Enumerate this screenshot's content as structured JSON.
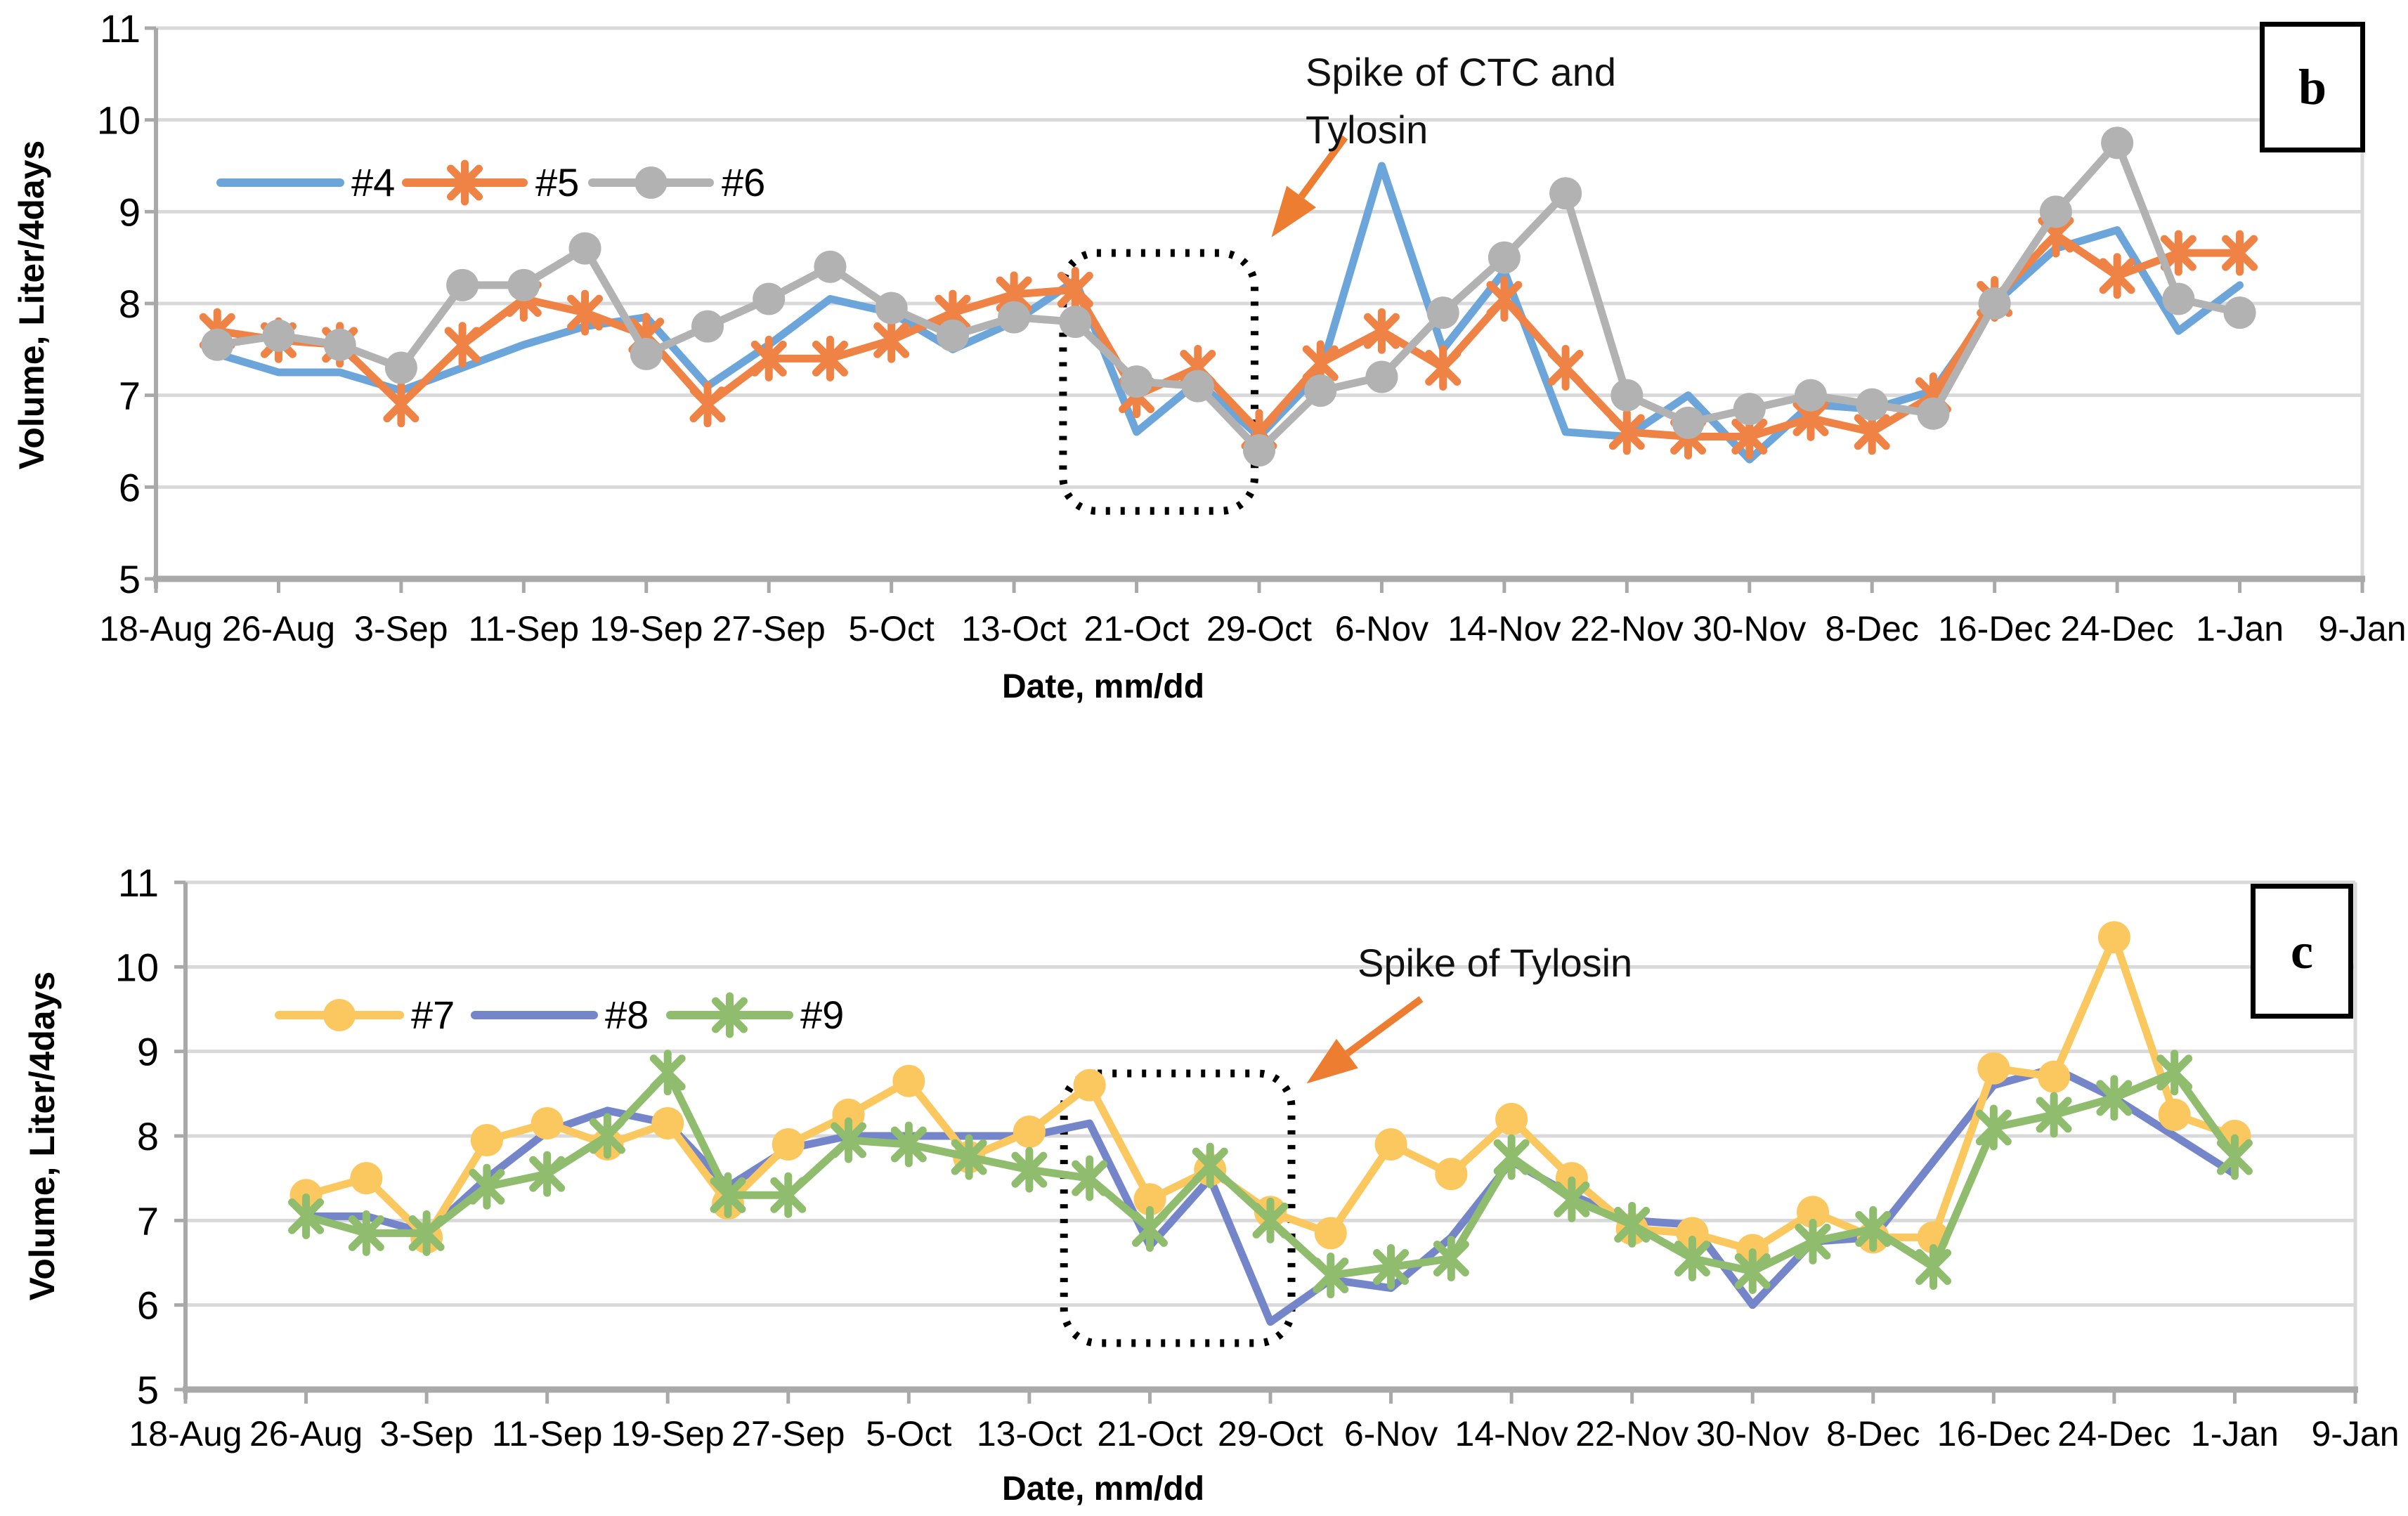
{
  "figure": {
    "background": "#FFFFFF",
    "x_axis_title": "Date, mm/dd",
    "y_axis_title": "Volume, Liter/4days",
    "x_tick_labels": [
      "18-Aug",
      "26-Aug",
      "3-Sep",
      "11-Sep",
      "19-Sep",
      "27-Sep",
      "5-Oct",
      "13-Oct",
      "21-Oct",
      "29-Oct",
      "6-Nov",
      "14-Nov",
      "22-Nov",
      "30-Nov",
      "8-Dec",
      "16-Dec",
      "24-Dec",
      "1-Jan",
      "9-Jan"
    ],
    "colors": {
      "grid": "#D9D9D9",
      "axis": "#A9A9A9",
      "annotation_arrow": "#ED7D31",
      "annotation_box": "#000000"
    }
  },
  "chart_data": [
    {
      "id": "b",
      "type": "line",
      "panel_label": "b",
      "ylabel": "Volume, Liter/4days",
      "xlabel": "Date, mm/dd",
      "ylim": [
        5,
        11
      ],
      "yticks": [
        5,
        6,
        7,
        8,
        9,
        10,
        11
      ],
      "grid": "horizontal",
      "legend_position": "top-inside-left",
      "x_tick_labels": [
        "18-Aug",
        "26-Aug",
        "3-Sep",
        "11-Sep",
        "19-Sep",
        "27-Sep",
        "5-Oct",
        "13-Oct",
        "21-Oct",
        "29-Oct",
        "6-Nov",
        "14-Nov",
        "22-Nov",
        "30-Nov",
        "8-Dec",
        "16-Dec",
        "24-Dec",
        "1-Jan",
        "9-Jan"
      ],
      "x_tick_step_days": 8,
      "x_total_days": 144,
      "annotation": {
        "lines": [
          "Spike of CTC and",
          "Tylosin"
        ],
        "text_day": 75.0,
        "text_value": 10.62,
        "arrow_tail": {
          "day": 77.6,
          "value": 9.81
        },
        "arrow_tip": {
          "day": 72.8,
          "value": 8.72
        },
        "box_day_range": [
          59.2,
          71.7
        ],
        "box_value_range": [
          5.74,
          8.55
        ]
      },
      "series": [
        {
          "name": "#4",
          "color": "#6CA5D9",
          "marker": "none",
          "x_start_day": 4,
          "x_step_days": 4,
          "dates": [
            "22-Aug",
            "26-Aug",
            "30-Aug",
            "3-Sep",
            "7-Sep",
            "11-Sep",
            "15-Sep",
            "19-Sep",
            "23-Sep",
            "27-Sep",
            "1-Oct",
            "5-Oct",
            "9-Oct",
            "13-Oct",
            "17-Oct",
            "21-Oct",
            "25-Oct",
            "29-Oct",
            "2-Nov",
            "6-Nov",
            "10-Nov",
            "14-Nov",
            "18-Nov",
            "22-Nov",
            "26-Nov",
            "30-Nov",
            "4-Dec",
            "8-Dec",
            "12-Dec",
            "16-Dec",
            "20-Dec",
            "24-Dec",
            "28-Dec",
            "1-Jan"
          ],
          "values": [
            7.45,
            7.25,
            7.25,
            7.05,
            7.3,
            7.55,
            7.75,
            7.85,
            7.1,
            7.55,
            8.05,
            7.9,
            7.5,
            7.8,
            8.25,
            6.6,
            7.15,
            6.55,
            7.25,
            9.5,
            7.5,
            8.35,
            6.6,
            6.55,
            7.0,
            6.3,
            6.9,
            6.85,
            7.05,
            8.0,
            8.6,
            8.8,
            7.7,
            8.2
          ]
        },
        {
          "name": "#5",
          "color": "#EE8345",
          "marker": "asterisk",
          "x_start_day": 4,
          "x_step_days": 4,
          "dates": [
            "22-Aug",
            "26-Aug",
            "30-Aug",
            "3-Sep",
            "7-Sep",
            "11-Sep",
            "15-Sep",
            "19-Sep",
            "23-Sep",
            "27-Sep",
            "1-Oct",
            "5-Oct",
            "9-Oct",
            "13-Oct",
            "17-Oct",
            "21-Oct",
            "25-Oct",
            "29-Oct",
            "2-Nov",
            "6-Nov",
            "10-Nov",
            "14-Nov",
            "18-Nov",
            "22-Nov",
            "26-Nov",
            "30-Nov",
            "4-Dec",
            "8-Dec",
            "12-Dec",
            "16-Dec",
            "20-Dec",
            "24-Dec",
            "28-Dec",
            "1-Jan"
          ],
          "values": [
            7.7,
            7.6,
            7.55,
            6.9,
            7.55,
            8.05,
            7.9,
            7.65,
            6.9,
            7.4,
            7.4,
            7.6,
            7.9,
            8.1,
            8.15,
            7.0,
            7.3,
            6.6,
            7.35,
            7.7,
            7.3,
            8.05,
            7.3,
            6.6,
            6.55,
            6.55,
            6.75,
            6.6,
            7.0,
            8.05,
            8.75,
            8.3,
            8.55,
            8.55
          ]
        },
        {
          "name": "#6",
          "color": "#B2B2B2",
          "marker": "circle",
          "x_start_day": 4,
          "x_step_days": 4,
          "dates": [
            "22-Aug",
            "26-Aug",
            "30-Aug",
            "3-Sep",
            "7-Sep",
            "11-Sep",
            "15-Sep",
            "19-Sep",
            "23-Sep",
            "27-Sep",
            "1-Oct",
            "5-Oct",
            "9-Oct",
            "13-Oct",
            "17-Oct",
            "21-Oct",
            "25-Oct",
            "29-Oct",
            "2-Nov",
            "6-Nov",
            "10-Nov",
            "14-Nov",
            "18-Nov",
            "22-Nov",
            "26-Nov",
            "30-Nov",
            "4-Dec",
            "8-Dec",
            "12-Dec",
            "16-Dec",
            "20-Dec",
            "24-Dec",
            "28-Dec",
            "1-Jan"
          ],
          "values": [
            7.55,
            7.65,
            7.55,
            7.3,
            8.2,
            8.2,
            8.6,
            7.45,
            7.75,
            8.05,
            8.4,
            7.95,
            7.65,
            7.85,
            7.8,
            7.15,
            7.1,
            6.4,
            7.05,
            7.2,
            7.9,
            8.5,
            9.2,
            7.0,
            6.7,
            6.85,
            7.0,
            6.9,
            6.8,
            8.0,
            9.0,
            9.75,
            8.05,
            7.9
          ]
        }
      ]
    },
    {
      "id": "c",
      "type": "line",
      "panel_label": "c",
      "ylabel": "Volume, Liter/4days",
      "xlabel": "Date, mm/dd",
      "ylim": [
        5,
        11
      ],
      "yticks": [
        5,
        6,
        7,
        8,
        9,
        10,
        11
      ],
      "grid": "horizontal",
      "legend_position": "top-inside-left",
      "x_tick_labels": [
        "18-Aug",
        "26-Aug",
        "3-Sep",
        "11-Sep",
        "19-Sep",
        "27-Sep",
        "5-Oct",
        "13-Oct",
        "21-Oct",
        "29-Oct",
        "6-Nov",
        "14-Nov",
        "22-Nov",
        "30-Nov",
        "8-Dec",
        "16-Dec",
        "24-Dec",
        "1-Jan",
        "9-Jan"
      ],
      "x_tick_step_days": 8,
      "x_total_days": 144,
      "annotation": {
        "lines": [
          "Spike of Tylosin"
        ],
        "text_day": 77.7,
        "text_value": 10.3,
        "arrow_tail": {
          "day": 82.0,
          "value": 9.62
        },
        "arrow_tip": {
          "day": 74.4,
          "value": 8.62
        },
        "box_day_range": [
          58.3,
          73.4
        ],
        "box_value_range": [
          5.55,
          8.74
        ]
      },
      "series": [
        {
          "name": "#7",
          "color": "#FBC860",
          "marker": "circle",
          "x_start_day": 8,
          "x_step_days": 4,
          "dates": [
            "26-Aug",
            "30-Aug",
            "3-Sep",
            "7-Sep",
            "11-Sep",
            "15-Sep",
            "19-Sep",
            "23-Sep",
            "27-Sep",
            "1-Oct",
            "5-Oct",
            "9-Oct",
            "13-Oct",
            "17-Oct",
            "21-Oct",
            "25-Oct",
            "29-Oct",
            "2-Nov",
            "6-Nov",
            "10-Nov",
            "14-Nov",
            "18-Nov",
            "22-Nov",
            "26-Nov",
            "30-Nov",
            "4-Dec",
            "8-Dec",
            "12-Dec",
            "16-Dec",
            "20-Dec",
            "24-Dec",
            "28-Dec",
            "1-Jan"
          ],
          "values": [
            7.3,
            7.5,
            6.8,
            7.95,
            8.15,
            7.9,
            8.15,
            7.2,
            7.9,
            8.25,
            8.65,
            7.75,
            8.05,
            8.6,
            7.25,
            7.6,
            7.1,
            6.85,
            7.9,
            7.55,
            8.2,
            7.5,
            6.9,
            6.85,
            6.65,
            7.1,
            6.8,
            6.8,
            8.8,
            8.7,
            10.35,
            8.25,
            8.0
          ]
        },
        {
          "name": "#8",
          "color": "#7486C9",
          "marker": "none",
          "x_start_day": 8,
          "x_step_days": 4,
          "dates": [
            "26-Aug",
            "30-Aug",
            "3-Sep",
            "7-Sep",
            "11-Sep",
            "15-Sep",
            "19-Sep",
            "23-Sep",
            "27-Sep",
            "1-Oct",
            "5-Oct",
            "9-Oct",
            "13-Oct",
            "17-Oct",
            "21-Oct",
            "25-Oct",
            "29-Oct",
            "2-Nov",
            "6-Nov",
            "10-Nov",
            "14-Nov",
            "18-Nov",
            "22-Nov",
            "26-Nov",
            "30-Nov",
            "4-Dec",
            "8-Dec",
            "12-Dec",
            "16-Dec",
            "20-Dec",
            "24-Dec",
            "28-Dec",
            "1-Jan"
          ],
          "values": [
            7.05,
            7.05,
            6.85,
            7.5,
            8.05,
            8.3,
            8.15,
            7.4,
            7.85,
            8.0,
            8.0,
            8.0,
            8.0,
            8.15,
            6.7,
            7.5,
            5.8,
            6.3,
            6.2,
            6.8,
            7.7,
            7.3,
            7.0,
            6.95,
            6.0,
            6.75,
            6.8,
            7.7,
            8.6,
            8.8,
            8.45,
            8.0,
            7.55
          ]
        },
        {
          "name": "#9",
          "color": "#90BC6E",
          "marker": "asterisk",
          "x_start_day": 8,
          "x_step_days": 4,
          "dates": [
            "26-Aug",
            "30-Aug",
            "3-Sep",
            "7-Sep",
            "11-Sep",
            "15-Sep",
            "19-Sep",
            "23-Sep",
            "27-Sep",
            "1-Oct",
            "5-Oct",
            "9-Oct",
            "13-Oct",
            "17-Oct",
            "21-Oct",
            "25-Oct",
            "29-Oct",
            "2-Nov",
            "6-Nov",
            "10-Nov",
            "14-Nov",
            "18-Nov",
            "22-Nov",
            "26-Nov",
            "30-Nov",
            "4-Dec",
            "8-Dec",
            "12-Dec",
            "16-Dec",
            "20-Dec",
            "24-Dec",
            "28-Dec",
            "1-Jan"
          ],
          "values": [
            7.05,
            6.85,
            6.85,
            7.4,
            7.55,
            8.0,
            8.75,
            7.3,
            7.3,
            7.95,
            7.9,
            7.75,
            7.6,
            7.5,
            6.9,
            7.65,
            7.0,
            6.35,
            6.45,
            6.55,
            7.75,
            7.25,
            6.95,
            6.55,
            6.4,
            6.75,
            6.9,
            6.45,
            8.1,
            8.25,
            8.45,
            8.75,
            7.75
          ]
        }
      ]
    }
  ]
}
